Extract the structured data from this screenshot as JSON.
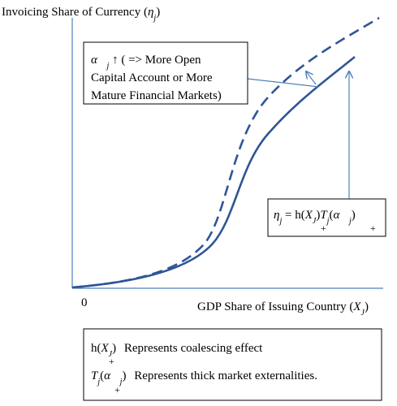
{
  "axes": {
    "y_title": [
      "Invoicing Share of Currency (",
      "η",
      "j",
      ")"
    ],
    "origin": "0",
    "x_title": [
      "GDP Share of Issuing Country (",
      "X",
      "J",
      ")"
    ]
  },
  "callout": {
    "line1": [
      "α⃗",
      "j",
      " ↑ ( => More Open"
    ],
    "line2": "Capital Account or More",
    "line3": "Mature Financial Markets)"
  },
  "equation": {
    "parts": [
      "η",
      "j",
      " = h(",
      "X",
      "J",
      ")",
      "T",
      "j",
      "(",
      "α⃗",
      "j",
      ")"
    ],
    "marks": [
      "+",
      "+"
    ]
  },
  "legend": {
    "rows": [
      {
        "term": [
          "h(",
          "X",
          "J",
          ")"
        ],
        "mark": "+",
        "text": "Represents coalescing effect"
      },
      {
        "term": [
          "T",
          "j",
          "(",
          "α⃗",
          "j",
          ")"
        ],
        "mark": "+",
        "text": "Represents thick market externalities."
      }
    ]
  }
}
